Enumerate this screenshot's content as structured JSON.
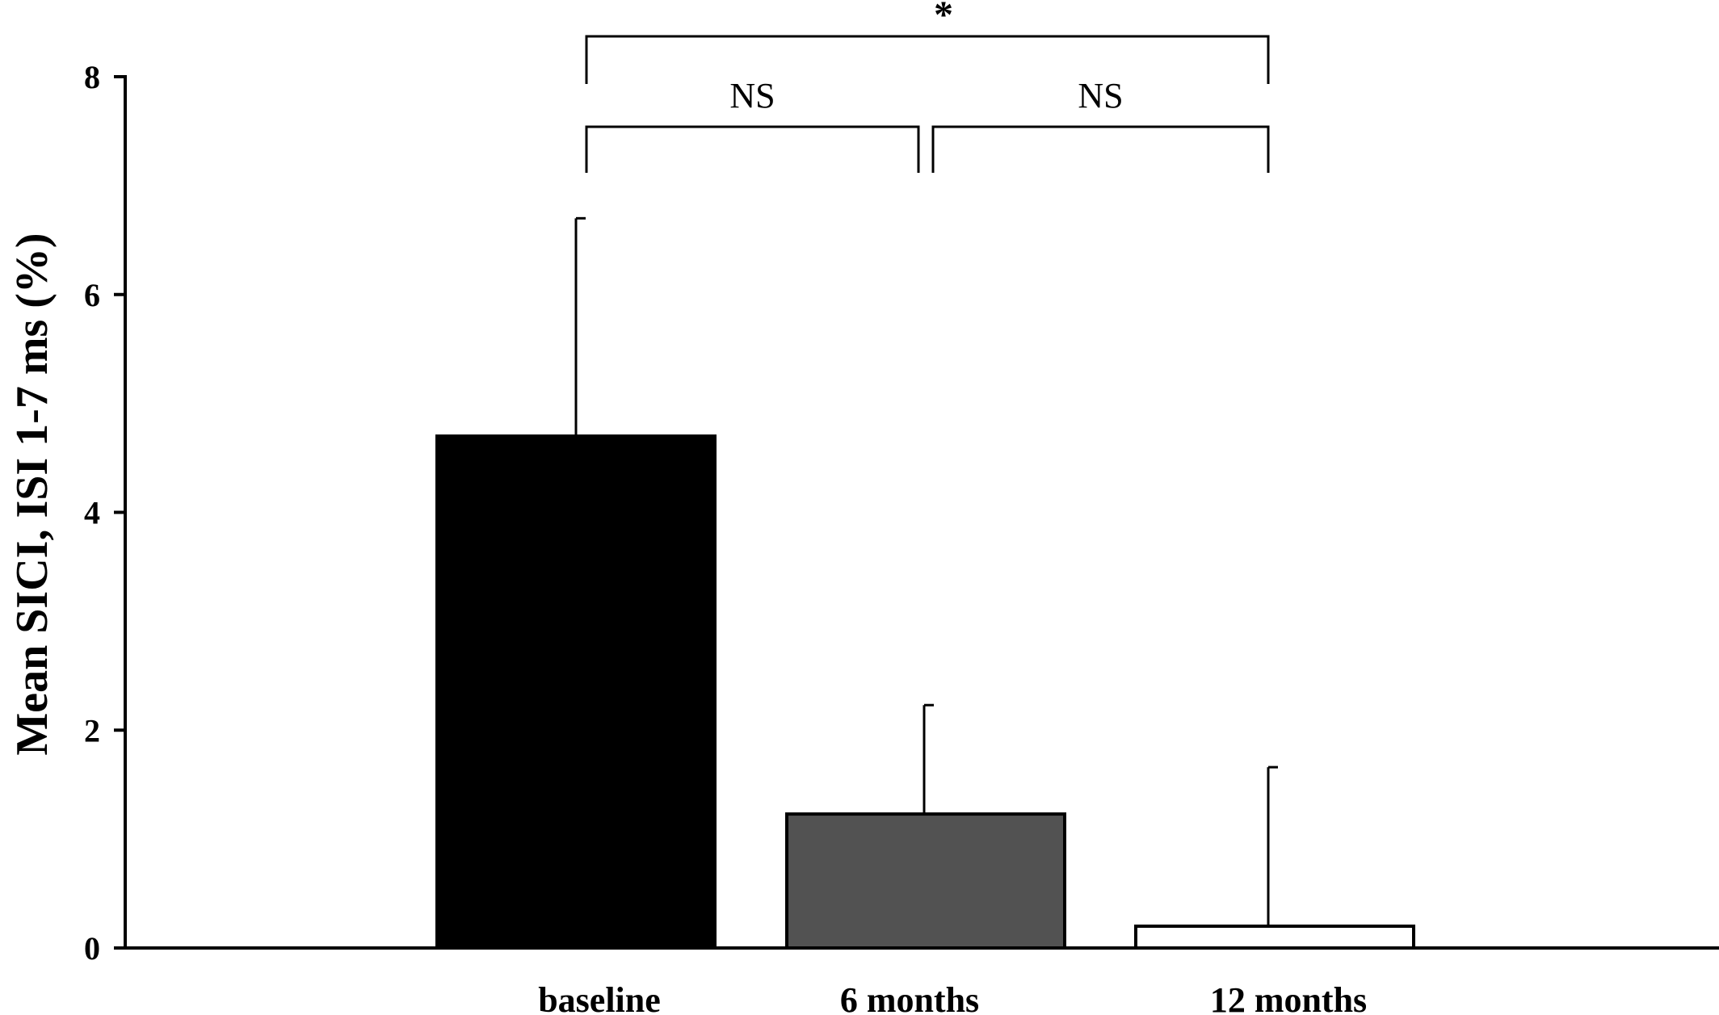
{
  "chart_data": {
    "type": "bar",
    "title": "",
    "xlabel": "",
    "ylabel": "Mean SICI, ISI 1-7 ms (%)",
    "ylim": [
      0,
      8
    ],
    "yticks": [
      "0",
      "2",
      "4",
      "6",
      "8"
    ],
    "grid": false,
    "legend": "none",
    "categories": [
      "baseline",
      "6 months",
      "12 months"
    ],
    "values": [
      4.7,
      1.23,
      0.2
    ],
    "error_upper": [
      2.0,
      1.0,
      1.46
    ],
    "bar_colors": [
      "#000000",
      "#525252",
      "#ffffff"
    ],
    "significance": [
      {
        "from": 0,
        "to": 1,
        "label": "NS"
      },
      {
        "from": 1,
        "to": 2,
        "label": "NS"
      },
      {
        "from": 0,
        "to": 2,
        "label": "*"
      }
    ]
  }
}
